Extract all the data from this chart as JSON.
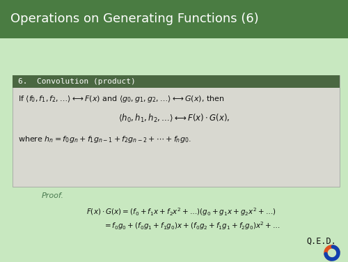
{
  "title": "Operations on Generating Functions (6)",
  "title_bg": "#4a7c42",
  "title_color": "#ffffff",
  "main_bg": "#c8e8c0",
  "box_bg": "#d8d8d0",
  "box_header_bg": "#4a6741",
  "box_header_color": "#ffffff",
  "box_header_text": "6.  Convolution (product)",
  "line1": "If $\\langle f_0, f_1, f_2, \\ldots\\rangle \\longleftrightarrow F(x)$ and $\\langle g_0, g_1, g_2, \\ldots\\rangle \\longleftrightarrow G(x)$, then",
  "line2": "$\\langle h_0, h_1, h_2, \\ldots\\rangle \\longleftrightarrow F(x)\\cdot G(x),$",
  "line3": "where $h_n = f_0 g_n + f_1 g_{n-1} + f_2 g_{n-2} + \\cdots + f_n g_0$.",
  "proof_label": "Proof.",
  "eq1": "$F(x)\\cdot G(x) = (f_0 + f_1 x + f_2 x^2 + \\ldots)(g_0 + g_1 x + g_2 x^2 + \\ldots)$",
  "eq2": "$= f_0 g_0 + (f_0 g_1 + f_1 g_0)x + (f_0 g_2 + f_1 g_1 + f_2 g_0)x^2 + \\ldots$",
  "qed": "Q.E.D.",
  "logo_orange": "#e05020",
  "logo_blue": "#1040b0",
  "title_fontsize": 13,
  "content_fontsize": 8.0,
  "header_fontsize": 8.0
}
